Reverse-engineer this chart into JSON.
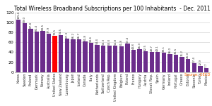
{
  "title": "Total Wireless Broadband Subscriptions per 100 Inhabitants  - Dec. 2011",
  "source": "Source: OECD",
  "categories": [
    "Korea",
    "Sweden",
    "Finland",
    "Denmark",
    "Norway",
    "Australia",
    "United States",
    "New Zealand",
    "Luxembourg",
    "Japan",
    "Iceland",
    "Canada",
    "Italy",
    "Netherlands",
    "Switzerland",
    "Czech Rep.",
    "United Kingdom",
    "Belgium",
    "Poland",
    "France",
    "Hungary",
    "Austria",
    "Slovak Rep.",
    "Spain",
    "Germany",
    "Ireland",
    "Portugal",
    "Greece",
    "Estonia",
    "Slovenia",
    "Turkey",
    "Mexico"
  ],
  "values": [
    105.6,
    99.0,
    87.8,
    82.4,
    83.5,
    77.9,
    73.5,
    74.5,
    67.3,
    66.2,
    66.7,
    61.8,
    58.6,
    54.4,
    53.3,
    53.0,
    52.8,
    51.8,
    57.4,
    44.8,
    46.3,
    42.5,
    40.7,
    40.1,
    39.1,
    36.0,
    35.5,
    31.2,
    26.0,
    17.4,
    12.9,
    7.7
  ],
  "bar_color": "#6B2D8B",
  "highlight_color": "#FF0000",
  "highlight_index": 6,
  "ylim": [
    0,
    120
  ],
  "yticks": [
    0,
    20,
    40,
    60,
    80,
    100,
    120
  ],
  "ylabel_fontsize": 4.5,
  "xlabel_fontsize": 3.5,
  "title_fontsize": 5.5,
  "value_fontsize": 3.0,
  "source_fontsize": 3.8,
  "background_color": "#FFFFFF",
  "grid_color": "#CCCCCC",
  "source_color": "#FF6600"
}
